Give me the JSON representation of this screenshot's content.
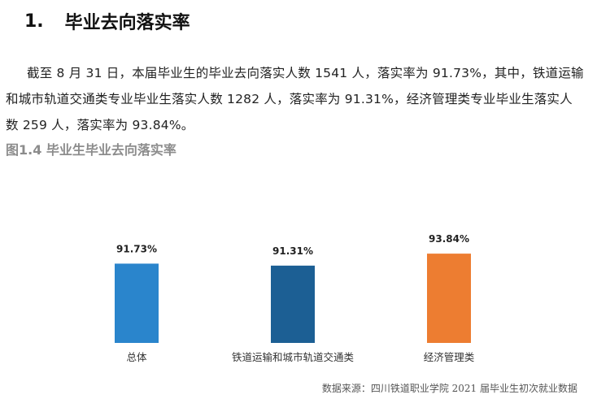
{
  "section": {
    "number": "1.",
    "title": "毕业去向落实率"
  },
  "paragraph": "截至 8 月 31 日，本届毕业生的毕业去向落实人数 1541 人，落实率为 91.73%，其中，铁道运输和城市轨道交通类专业毕业生落实人数 1282 人，落实率为 91.31%，经济管理类专业毕业生落实人数 259 人，落实率为 93.84%。",
  "figure": {
    "caption": "图1.4 毕业生毕业去向落实率",
    "source": "数据来源：四川铁道职业学院 2021 届毕业生初次就业数据"
  },
  "chart_data": {
    "type": "bar",
    "title": "",
    "xlabel": "",
    "ylabel": "",
    "categories": [
      "总体",
      "铁道运输和城市轨道交通类",
      "经济管理类"
    ],
    "values": [
      91.73,
      91.31,
      93.84
    ],
    "data_labels": [
      "91.73%",
      "91.31%",
      "93.84%"
    ],
    "colors": [
      "#2a85cc",
      "#1c5f94",
      "#ed7d31"
    ],
    "ylim": [
      0,
      100
    ],
    "grid": false,
    "legend": "none"
  }
}
